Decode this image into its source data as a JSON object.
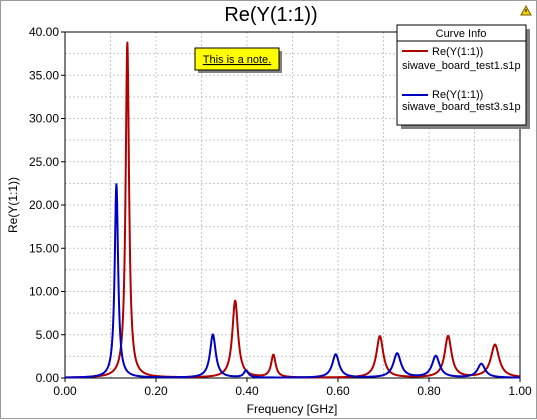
{
  "chart_data": {
    "type": "line",
    "title": "Re(Y(1:1))",
    "xlabel": "Frequency [GHz]",
    "ylabel": "Re(Y(1:1))",
    "xlim": [
      0.0,
      1.0
    ],
    "ylim": [
      0.0,
      40.0
    ],
    "x_ticks": [
      "0.00",
      "0.20",
      "0.40",
      "0.60",
      "0.80",
      "1.00"
    ],
    "y_ticks": [
      "0.00",
      "5.00",
      "10.00",
      "15.00",
      "20.00",
      "25.00",
      "30.00",
      "35.00",
      "40.00"
    ],
    "grid": true,
    "note": "This is a note.",
    "legend": {
      "title": "Curve Info",
      "placement": "top-right"
    },
    "series": [
      {
        "name": "Re(Y(1:1))",
        "source": "siwave_board_test1.s1p",
        "color": "#b00000",
        "peaks": [
          {
            "x": 0.137,
            "y": 38.8,
            "w": 0.0045
          },
          {
            "x": 0.374,
            "y": 8.9,
            "w": 0.0075
          },
          {
            "x": 0.458,
            "y": 2.6,
            "w": 0.006
          },
          {
            "x": 0.692,
            "y": 4.8,
            "w": 0.009
          },
          {
            "x": 0.842,
            "y": 4.8,
            "w": 0.009
          },
          {
            "x": 0.945,
            "y": 3.8,
            "w": 0.011
          }
        ]
      },
      {
        "name": "Re(Y(1:1))",
        "source": "siwave_board_test3.s1p",
        "color": "#0000c0",
        "peaks": [
          {
            "x": 0.113,
            "y": 22.4,
            "w": 0.0045
          },
          {
            "x": 0.325,
            "y": 5.0,
            "w": 0.0075
          },
          {
            "x": 0.398,
            "y": 0.8,
            "w": 0.006
          },
          {
            "x": 0.595,
            "y": 2.7,
            "w": 0.009
          },
          {
            "x": 0.73,
            "y": 2.8,
            "w": 0.01
          },
          {
            "x": 0.815,
            "y": 2.5,
            "w": 0.01
          },
          {
            "x": 0.915,
            "y": 1.6,
            "w": 0.01
          }
        ]
      }
    ]
  }
}
